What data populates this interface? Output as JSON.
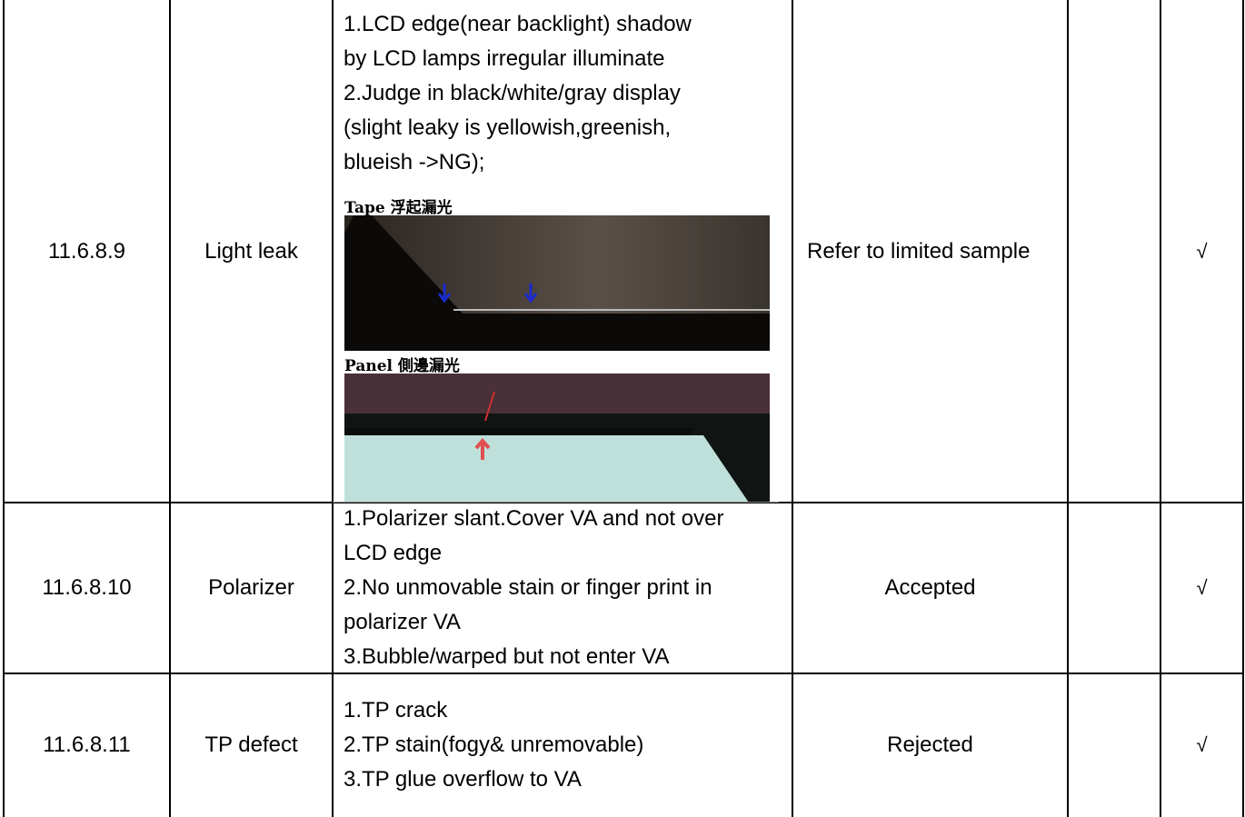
{
  "table": {
    "rows": [
      {
        "id": "11.6.8.9",
        "item": "Light leak",
        "criteria": [
          "1.LCD edge(near backlight) shadow",
          "by LCD lamps irregular illuminate",
          "2.Judge in black/white/gray display",
          "(slight leaky is yellowish,greenish,",
          "blueish ->NG);"
        ],
        "figures": [
          {
            "caption": "Tape 浮起漏光"
          },
          {
            "caption": "Panel 側邊漏光"
          }
        ],
        "judgment": "Refer to limited sample",
        "mark": "√"
      },
      {
        "id": "11.6.8.10",
        "item": "Polarizer",
        "criteria": [
          "1.Polarizer slant.Cover VA and not over",
          "LCD edge",
          "2.No unmovable stain or finger print in",
          "polarizer VA",
          "3.Bubble/warped but not enter VA"
        ],
        "judgment": "Accepted",
        "mark": "√"
      },
      {
        "id": "11.6.8.11",
        "item": "TP defect",
        "criteria": [
          "1.TP crack",
          "2.TP stain(fogy& unremovable)",
          "3.TP glue overflow to VA"
        ],
        "judgment": "Rejected",
        "mark": "√"
      }
    ]
  }
}
